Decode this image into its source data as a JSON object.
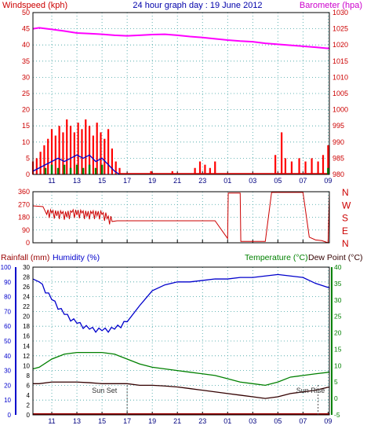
{
  "header": {
    "left_label": "Windspeed (kph)",
    "center_label": "24 hour graph day : 19 June 2012",
    "right_label": "Barometer (hpa)"
  },
  "colors": {
    "windspeed": "#ff0000",
    "wind_avg": "#0000cc",
    "wind_calm": "#008000",
    "barometer": "#ff00ff",
    "direction": "#cc0000",
    "humidity": "#0000cc",
    "temperature": "#008000",
    "dewpoint": "#330000",
    "rainfall": "#990000",
    "axis_left": "#cc0000",
    "axis_blue": "#0000cc",
    "axis_green": "#008000",
    "grid": "#3aa0a0"
  },
  "x_ticks": [
    "11",
    "13",
    "15",
    "17",
    "19",
    "21",
    "23",
    "01",
    "03",
    "05",
    "07",
    "09"
  ],
  "chart_data": [
    {
      "type": "line",
      "title": "24 hour graph day : 19 June 2012",
      "ylabel_left": "Windspeed (kph)",
      "ylabel_right": "Barometer (hpa)",
      "ylim_left": [
        0,
        50
      ],
      "ylim_right": [
        980,
        1030
      ],
      "yticks_left": [
        "0",
        "5",
        "10",
        "15",
        "20",
        "25",
        "30",
        "35",
        "40",
        "45",
        "50"
      ],
      "yticks_right": [
        "980",
        "985",
        "990",
        "995",
        "1000",
        "1005",
        "1010",
        "1015",
        "1020",
        "1025",
        "1030"
      ],
      "x_hours": [
        9.5,
        10,
        11,
        12,
        13,
        14,
        15,
        16,
        17,
        18,
        19,
        20,
        21,
        22,
        23,
        24,
        25,
        26,
        27,
        28,
        29,
        30,
        31,
        32,
        33.1
      ],
      "series": [
        {
          "name": "Barometer",
          "axis": "right",
          "values": [
            1025,
            1025.3,
            1024.8,
            1024.3,
            1023.7,
            1023.5,
            1023.3,
            1023,
            1022.8,
            1023,
            1023.2,
            1023.3,
            1023,
            1022.6,
            1022.3,
            1021.9,
            1021.5,
            1021.2,
            1021,
            1020.5,
            1020.2,
            1019.9,
            1019.6,
            1019.3,
            1018.9
          ]
        }
      ],
      "windspeed_gust": [
        [
          9.5,
          4
        ],
        [
          9.8,
          5
        ],
        [
          10.1,
          7
        ],
        [
          10.4,
          9
        ],
        [
          10.7,
          11
        ],
        [
          11.0,
          14
        ],
        [
          11.3,
          12
        ],
        [
          11.6,
          15
        ],
        [
          11.9,
          13
        ],
        [
          12.2,
          17
        ],
        [
          12.5,
          15
        ],
        [
          12.8,
          13
        ],
        [
          13.1,
          16
        ],
        [
          13.4,
          14
        ],
        [
          13.7,
          17
        ],
        [
          14.0,
          15
        ],
        [
          14.3,
          12
        ],
        [
          14.6,
          16
        ],
        [
          14.9,
          13
        ],
        [
          15.2,
          11
        ],
        [
          15.5,
          14
        ],
        [
          15.8,
          8
        ],
        [
          16.1,
          4
        ],
        [
          16.4,
          2
        ],
        [
          18.9,
          1
        ],
        [
          20.6,
          1
        ],
        [
          22.4,
          2
        ],
        [
          22.8,
          4
        ],
        [
          23.2,
          3
        ],
        [
          23.6,
          2
        ],
        [
          24.0,
          4
        ],
        [
          28.8,
          6
        ],
        [
          29.3,
          13
        ],
        [
          29.6,
          5
        ],
        [
          30.1,
          4
        ],
        [
          30.7,
          5
        ],
        [
          31.2,
          4
        ],
        [
          31.7,
          5
        ],
        [
          32.2,
          4
        ],
        [
          32.6,
          6
        ],
        [
          33.0,
          9
        ]
      ],
      "windspeed_avg": [
        [
          9.5,
          1
        ],
        [
          10.0,
          2
        ],
        [
          10.5,
          3
        ],
        [
          11.0,
          4
        ],
        [
          11.5,
          5
        ],
        [
          12.0,
          4
        ],
        [
          12.5,
          5
        ],
        [
          13.0,
          6
        ],
        [
          13.5,
          5
        ],
        [
          14.0,
          6
        ],
        [
          14.5,
          4
        ],
        [
          15.0,
          5
        ],
        [
          15.5,
          3
        ],
        [
          16.0,
          1
        ],
        [
          16.4,
          0
        ]
      ],
      "windspeed_calm": [
        [
          10.5,
          2
        ],
        [
          11.0,
          3
        ],
        [
          11.5,
          2
        ],
        [
          12.0,
          3
        ],
        [
          12.5,
          2
        ],
        [
          13.0,
          3
        ],
        [
          13.5,
          2
        ],
        [
          14.0,
          3
        ],
        [
          14.5,
          2
        ],
        [
          15.0,
          3
        ],
        [
          33.0,
          2
        ]
      ]
    },
    {
      "type": "line",
      "ylabel_right": [
        "N",
        "W",
        "S",
        "E",
        "N"
      ],
      "ylim": [
        0,
        360
      ],
      "yticks": [
        "0",
        "90",
        "180",
        "270",
        "360"
      ],
      "series": [
        {
          "name": "Wind direction",
          "x": [
            9.5,
            10.3,
            10.6,
            11.0,
            11.4,
            11.8,
            12.2,
            12.6,
            13.0,
            13.4,
            13.8,
            14.2,
            14.6,
            15.0,
            15.4,
            15.8,
            16.2,
            20.0,
            24.0,
            25.0,
            25.05,
            26.0,
            26.05,
            28.0,
            28.5,
            31.0,
            31.5,
            32.0,
            32.5,
            33.0,
            33.1
          ],
          "values": [
            260,
            255,
            200,
            210,
            190,
            205,
            180,
            215,
            195,
            210,
            185,
            205,
            190,
            200,
            170,
            150,
            155,
            155,
            155,
            30,
            350,
            350,
            10,
            10,
            355,
            355,
            40,
            20,
            15,
            0,
            350
          ]
        }
      ]
    },
    {
      "type": "line",
      "ylabel_left": "Rainfall (mm)",
      "ylabel_left2": "Humidity (%)",
      "ylabel_right": "Temperature (°C)",
      "ylabel_right2": "Dew Point (°C)",
      "ylim_humidity": [
        0,
        100
      ],
      "ylim_rain": [
        0,
        30
      ],
      "ylim_temp": [
        -5,
        40
      ],
      "yticks_humidity": [
        "0",
        "10",
        "20",
        "30",
        "40",
        "50",
        "60",
        "70",
        "80",
        "90",
        "100"
      ],
      "yticks_rain": [
        "0",
        "2",
        "4",
        "6",
        "8",
        "10",
        "12",
        "14",
        "16",
        "18",
        "20",
        "22",
        "24",
        "26",
        "28",
        "30"
      ],
      "yticks_temp": [
        "-5",
        "0",
        "5",
        "10",
        "15",
        "20",
        "25",
        "30",
        "35",
        "40"
      ],
      "annotations": [
        "Sun Set",
        "Sun Rise"
      ],
      "x_hours": [
        9.5,
        10,
        11,
        12,
        13,
        14,
        15,
        16,
        17,
        18,
        19,
        20,
        21,
        22,
        23,
        24,
        25,
        26,
        27,
        28,
        29,
        30,
        31,
        32,
        33.1
      ],
      "series": [
        {
          "name": "Humidity",
          "axis": "humidity",
          "values": [
            92,
            90,
            78,
            68,
            62,
            58,
            57,
            58,
            63,
            74,
            84,
            88,
            90,
            90,
            91,
            92,
            92,
            93,
            93,
            94,
            95,
            94,
            93,
            89,
            86
          ]
        },
        {
          "name": "Temperature",
          "axis": "temp",
          "values": [
            9,
            9.5,
            12,
            13.5,
            14,
            14,
            14,
            13.5,
            12,
            10.5,
            9.5,
            9,
            8.5,
            8,
            7.5,
            7,
            6,
            5,
            4.5,
            4,
            5,
            6.5,
            7,
            7.5,
            8
          ]
        },
        {
          "name": "Dew Point",
          "axis": "temp",
          "values": [
            4.5,
            4.5,
            5,
            5,
            5,
            4.8,
            4.5,
            4.5,
            4.5,
            4,
            4,
            3.8,
            3.5,
            3,
            2.5,
            2,
            1.5,
            1,
            0.5,
            0,
            0.5,
            1.5,
            2,
            2.5,
            3.5
          ]
        },
        {
          "name": "Rainfall",
          "axis": "rain",
          "values": [
            0,
            0,
            0,
            0,
            0,
            0,
            0,
            0,
            0,
            0,
            0,
            0,
            0,
            0,
            0,
            0,
            0,
            0,
            0,
            0,
            0,
            0,
            0,
            0,
            0
          ]
        }
      ]
    }
  ]
}
